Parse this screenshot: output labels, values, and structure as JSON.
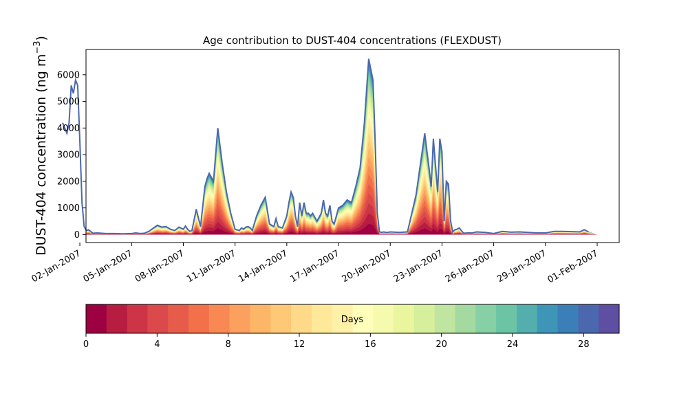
{
  "chart_data": [
    {
      "type": "area",
      "title": "Age contribution to DUST-404 concentrations (FLEXDUST)",
      "ylabel": "DUST-404 concentration (ng m",
      "ylabel_sup": "−3",
      "ylabel_close": ")",
      "xlim": [
        "2007-01-01",
        "2007-02-01"
      ],
      "ylim": [
        -300,
        6950
      ],
      "yticks": [
        0,
        1000,
        2000,
        3000,
        4000,
        5000,
        6000
      ],
      "xticks": [
        {
          "date": "2007-01-02",
          "label": "02-Jan-2007"
        },
        {
          "date": "2007-01-05",
          "label": "05-Jan-2007"
        },
        {
          "date": "2007-01-08",
          "label": "08-Jan-2007"
        },
        {
          "date": "2007-01-11",
          "label": "11-Jan-2007"
        },
        {
          "date": "2007-01-14",
          "label": "14-Jan-2007"
        },
        {
          "date": "2007-01-17",
          "label": "17-Jan-2007"
        },
        {
          "date": "2007-01-20",
          "label": "20-Jan-2007"
        },
        {
          "date": "2007-01-23",
          "label": "23-Jan-2007"
        },
        {
          "date": "2007-01-26",
          "label": "26-Jan-2007"
        },
        {
          "date": "2007-01-29",
          "label": "29-Jan-2007"
        },
        {
          "date": "2007-02-01",
          "label": "01-Feb-2007"
        }
      ],
      "series_note": "stacked areas by age 0-30 days; outer envelope is total concentration",
      "x": [
        "2007-01-01T00:00",
        "2007-01-01T06:00",
        "2007-01-01T09:00",
        "2007-01-01T12:00",
        "2007-01-01T15:00",
        "2007-01-01T18:00",
        "2007-01-01T21:00",
        "2007-01-02T00:00",
        "2007-01-02T03:00",
        "2007-01-02T06:00",
        "2007-01-02T09:00",
        "2007-01-02T12:00",
        "2007-01-02T18:00",
        "2007-01-03T00:00",
        "2007-01-03T12:00",
        "2007-01-04T00:00",
        "2007-01-04T12:00",
        "2007-01-05T00:00",
        "2007-01-05T06:00",
        "2007-01-05T12:00",
        "2007-01-05T18:00",
        "2007-01-06T00:00",
        "2007-01-06T12:00",
        "2007-01-06T18:00",
        "2007-01-07T00:00",
        "2007-01-07T06:00",
        "2007-01-07T12:00",
        "2007-01-07T18:00",
        "2007-01-08T00:00",
        "2007-01-08T03:00",
        "2007-01-08T06:00",
        "2007-01-08T09:00",
        "2007-01-08T12:00",
        "2007-01-08T18:00",
        "2007-01-09T00:00",
        "2007-01-09T06:00",
        "2007-01-09T09:00",
        "2007-01-09T12:00",
        "2007-01-09T18:00",
        "2007-01-10T00:00",
        "2007-01-10T06:00",
        "2007-01-10T12:00",
        "2007-01-10T18:00",
        "2007-01-11T00:00",
        "2007-01-11T06:00",
        "2007-01-11T09:00",
        "2007-01-11T12:00",
        "2007-01-11T15:00",
        "2007-01-11T18:00",
        "2007-01-11T21:00",
        "2007-01-12T00:00",
        "2007-01-12T06:00",
        "2007-01-12T12:00",
        "2007-01-12T18:00",
        "2007-01-13T00:00",
        "2007-01-13T06:00",
        "2007-01-13T09:00",
        "2007-01-13T12:00",
        "2007-01-13T18:00",
        "2007-01-14T00:00",
        "2007-01-14T03:00",
        "2007-01-14T06:00",
        "2007-01-14T09:00",
        "2007-01-14T12:00",
        "2007-01-14T15:00",
        "2007-01-14T18:00",
        "2007-01-14T21:00",
        "2007-01-15T00:00",
        "2007-01-15T03:00",
        "2007-01-15T06:00",
        "2007-01-15T09:00",
        "2007-01-15T12:00",
        "2007-01-15T18:00",
        "2007-01-16T00:00",
        "2007-01-16T03:00",
        "2007-01-16T06:00",
        "2007-01-16T09:00",
        "2007-01-16T12:00",
        "2007-01-16T15:00",
        "2007-01-16T18:00",
        "2007-01-17T00:00",
        "2007-01-17T06:00",
        "2007-01-17T12:00",
        "2007-01-17T18:00",
        "2007-01-18T00:00",
        "2007-01-18T06:00",
        "2007-01-18T12:00",
        "2007-01-18T18:00",
        "2007-01-19T00:00",
        "2007-01-19T03:00",
        "2007-01-19T06:00",
        "2007-01-19T09:00",
        "2007-01-19T12:00",
        "2007-01-19T15:00",
        "2007-01-19T18:00",
        "2007-01-19T21:00",
        "2007-01-20T00:00",
        "2007-01-20T12:00",
        "2007-01-21T00:00",
        "2007-01-21T12:00",
        "2007-01-22T00:00",
        "2007-01-22T06:00",
        "2007-01-22T09:00",
        "2007-01-22T12:00",
        "2007-01-22T15:00",
        "2007-01-22T18:00",
        "2007-01-22T21:00",
        "2007-01-23T00:00",
        "2007-01-23T03:00",
        "2007-01-23T06:00",
        "2007-01-23T09:00",
        "2007-01-23T12:00",
        "2007-01-23T15:00",
        "2007-01-23T18:00",
        "2007-01-23T21:00",
        "2007-01-24T00:00",
        "2007-01-24T06:00",
        "2007-01-24T12:00",
        "2007-01-24T18:00",
        "2007-01-25T00:00",
        "2007-01-25T12:00",
        "2007-01-26T00:00",
        "2007-01-26T12:00",
        "2007-01-27T00:00",
        "2007-01-27T12:00",
        "2007-01-28T00:00",
        "2007-01-28T12:00",
        "2007-01-29T00:00",
        "2007-01-29T12:00",
        "2007-01-30T00:00",
        "2007-01-30T12:00",
        "2007-01-31T00:00",
        "2007-01-31T06:00",
        "2007-01-31T12:00",
        "2007-01-31T18:00",
        "2007-02-01T00:00"
      ],
      "total": [
        4200,
        3800,
        4200,
        5600,
        5300,
        5800,
        5600,
        3500,
        1200,
        300,
        150,
        180,
        50,
        60,
        40,
        40,
        30,
        40,
        60,
        40,
        50,
        120,
        350,
        280,
        300,
        200,
        150,
        280,
        200,
        320,
        200,
        120,
        150,
        950,
        300,
        1800,
        2100,
        2300,
        2000,
        4000,
        2700,
        1600,
        800,
        200,
        150,
        250,
        200,
        280,
        300,
        250,
        150,
        700,
        1100,
        1400,
        400,
        300,
        600,
        300,
        250,
        700,
        1200,
        1600,
        1400,
        700,
        300,
        1200,
        700,
        1200,
        800,
        800,
        700,
        800,
        500,
        800,
        1300,
        800,
        700,
        1100,
        500,
        400,
        1000,
        1100,
        1300,
        1200,
        1800,
        2500,
        4200,
        6600,
        5800,
        3500,
        800,
        100,
        80,
        100,
        80,
        80,
        100,
        80,
        100,
        1500,
        3800,
        2500,
        1800,
        3600,
        2600,
        1600,
        3600,
        3100,
        500,
        2000,
        1900,
        500,
        100,
        180,
        200,
        250,
        50,
        60,
        60,
        100,
        80,
        40,
        120,
        90,
        100,
        80,
        60,
        60,
        120,
        120,
        110,
        100,
        180,
        100
      ]
    }
  ],
  "colorbar": {
    "label": "Days",
    "vmin": 0,
    "vmax": 30,
    "ticks": [
      0,
      4,
      8,
      12,
      16,
      20,
      24,
      28
    ],
    "palette": [
      "#9e0142",
      "#b71c41",
      "#cd3546",
      "#dc494c",
      "#e75b4b",
      "#f2704a",
      "#f88954",
      "#fca05f",
      "#fdb567",
      "#fec877",
      "#fed989",
      "#fee899",
      "#fff1a8",
      "#fefdb9",
      "#f5faae",
      "#e9f69d",
      "#d6ef9c",
      "#bfe5a0",
      "#a4da9f",
      "#87cfa4",
      "#6bc4a4",
      "#54aead",
      "#3d95b8",
      "#3b7fb8",
      "#4b68ae",
      "#5e4fa2"
    ]
  }
}
